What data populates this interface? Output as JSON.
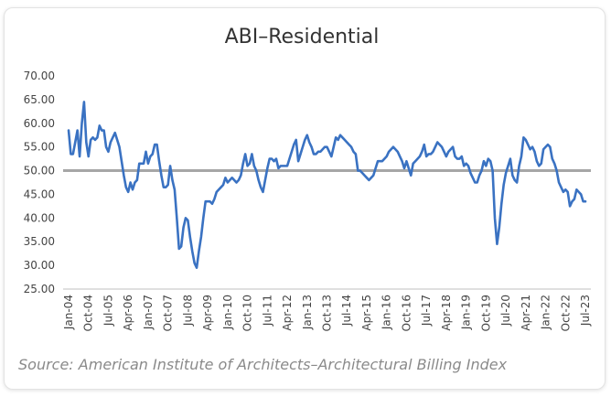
{
  "chart_data": {
    "type": "line",
    "title": "ABI–Residential",
    "source": "Source: American Institute of Architects–Architectural Billing Index",
    "categories": [
      "Jan-04",
      null,
      null,
      null,
      null,
      null,
      null,
      null,
      null,
      "Oct-04",
      null,
      null,
      null,
      null,
      null,
      null,
      null,
      null,
      "Jul-05",
      null,
      null,
      null,
      null,
      null,
      null,
      null,
      null,
      "Apr-06",
      null,
      null,
      null,
      null,
      null,
      null,
      null,
      null,
      "Jan-07",
      null,
      null,
      null,
      null,
      null,
      null,
      null,
      null,
      "Oct-07",
      null,
      null,
      null,
      null,
      null,
      null,
      null,
      null,
      "Jul-08",
      null,
      null,
      null,
      null,
      null,
      null,
      null,
      null,
      "Apr-09",
      null,
      null,
      null,
      null,
      null,
      null,
      null,
      null,
      "Jan-10",
      null,
      null,
      null,
      null,
      null,
      null,
      null,
      null,
      "Oct-10",
      null,
      null,
      null,
      null,
      null,
      null,
      null,
      null,
      "Jul-11",
      null,
      null,
      null,
      null,
      null,
      null,
      null,
      null,
      "Apr-12",
      null,
      null,
      null,
      null,
      null,
      null,
      null,
      null,
      "Jan-13",
      null,
      null,
      null,
      null,
      null,
      null,
      null,
      null,
      "Oct-13",
      null,
      null,
      null,
      null,
      null,
      null,
      null,
      null,
      "Jul-14",
      null,
      null,
      null,
      null,
      null,
      null,
      null,
      null,
      "Apr-15",
      null,
      null,
      null,
      null,
      null,
      null,
      null,
      null,
      "Jan-16",
      null,
      null,
      null,
      null,
      null,
      null,
      null,
      null,
      "Oct-16",
      null,
      null,
      null,
      null,
      null,
      null,
      null,
      null,
      "Jul-17",
      null,
      null,
      null,
      null,
      null,
      null,
      null,
      null,
      "Apr-18",
      null,
      null,
      null,
      null,
      null,
      null,
      null,
      null,
      "Jan-19",
      null,
      null,
      null,
      null,
      null,
      null,
      null,
      null,
      "Oct-19",
      null,
      null,
      null,
      null,
      null,
      null,
      null,
      null,
      "Jul-20",
      null,
      null,
      null,
      null,
      null,
      null,
      null,
      null,
      "Apr-21",
      null,
      null,
      null,
      null,
      null,
      null,
      null,
      null,
      "Jan-22",
      null,
      null,
      null,
      null,
      null,
      null,
      null,
      null,
      "Oct-22",
      null,
      null,
      null,
      null,
      null,
      null,
      null,
      null,
      "Jul-23"
    ],
    "values": [
      58.5,
      53.5,
      53.5,
      56,
      58.5,
      53,
      60,
      64.5,
      56,
      53,
      56.5,
      57,
      56.5,
      57,
      59.5,
      58.5,
      58.5,
      55,
      54,
      56,
      57,
      58,
      56.5,
      55,
      52,
      49,
      46.5,
      45.5,
      47.5,
      46,
      47.5,
      48,
      51.5,
      51.5,
      51.5,
      54,
      51.5,
      53,
      53.5,
      55.5,
      55.5,
      52,
      49,
      46.5,
      46.5,
      47,
      51,
      48,
      46,
      40,
      33.5,
      34,
      38,
      40,
      39.5,
      36,
      33,
      30.5,
      29.5,
      33,
      36,
      40,
      43.5,
      43.5,
      43.5,
      43,
      44,
      45.5,
      46,
      46.5,
      47,
      48.5,
      47.5,
      48,
      48.5,
      48,
      47.5,
      48,
      49,
      51.5,
      53.5,
      51,
      51.5,
      53.5,
      51,
      50,
      48,
      46.5,
      45.5,
      48,
      50.5,
      52.5,
      52.5,
      52,
      52.5,
      50.5,
      51,
      51,
      51,
      51,
      52.5,
      54,
      55.5,
      56.5,
      52,
      53.5,
      55,
      56.5,
      57.5,
      56,
      55,
      53.5,
      53.5,
      54,
      54,
      54.5,
      55,
      55,
      54,
      53,
      55,
      57,
      56.5,
      57.5,
      57,
      56.5,
      56,
      55.5,
      55,
      54,
      53.5,
      50,
      50,
      49.5,
      49,
      48.5,
      48,
      48.5,
      49,
      50.5,
      52,
      52,
      52,
      52.5,
      53,
      54,
      54.5,
      55,
      54.5,
      54,
      53,
      52,
      50.5,
      52,
      50.5,
      49,
      51.5,
      52,
      52.5,
      53,
      54,
      55.5,
      53,
      53.5,
      53.5,
      54,
      55,
      56,
      55.5,
      55,
      54,
      53,
      54,
      54.5,
      55,
      53,
      52.5,
      52.5,
      53,
      51,
      51.5,
      51,
      49.5,
      48.5,
      47.5,
      47.5,
      49,
      50,
      52,
      51,
      52.5,
      52,
      50,
      40,
      34.5,
      38,
      43,
      47,
      49.5,
      51,
      52.5,
      49,
      48,
      47.5,
      51,
      53,
      57,
      56.5,
      55.5,
      54.5,
      55,
      54,
      52,
      51,
      51.5,
      54.5,
      55,
      55.5,
      55,
      52.5,
      51.5,
      50,
      47.5,
      46.5,
      45.5,
      46,
      45.5,
      42.5,
      43.5,
      44,
      46,
      45.5,
      45,
      43.5,
      43.5
    ],
    "color": "#3a72c2",
    "reference_line": {
      "value": 50,
      "color": "#a6a6a6"
    },
    "ylim": [
      25,
      70
    ],
    "yticks": [
      {
        "value": 25,
        "label": "25.00"
      },
      {
        "value": 30,
        "label": "30.00"
      },
      {
        "value": 35,
        "label": "35.00"
      },
      {
        "value": 40,
        "label": "40.00"
      },
      {
        "value": 45,
        "label": "45.00"
      },
      {
        "value": 50,
        "label": "50.00"
      },
      {
        "value": 55,
        "label": "55.00"
      },
      {
        "value": 60,
        "label": "60.00"
      },
      {
        "value": 65,
        "label": "65.00"
      },
      {
        "value": 70,
        "label": "70.00"
      }
    ],
    "grid": false
  }
}
